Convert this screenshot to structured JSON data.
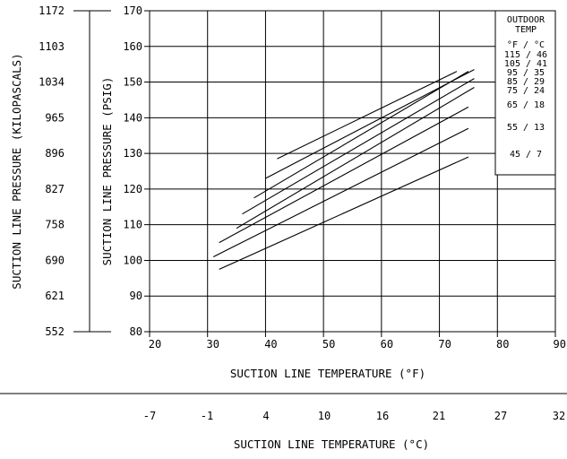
{
  "chart_data": {
    "type": "line",
    "x_axis": {
      "label": "SUCTION LINE TEMPERATURE (°F)",
      "range": [
        20,
        90
      ],
      "ticks": [
        20,
        30,
        40,
        50,
        60,
        70,
        80,
        90
      ]
    },
    "y_axis": {
      "label": "SUCTION LINE PRESSURE (PSIG)",
      "range": [
        80,
        170
      ],
      "ticks": [
        80,
        90,
        100,
        110,
        120,
        130,
        140,
        150,
        160,
        170
      ]
    },
    "secondary_y_axis": {
      "label": "SUCTION LINE PRESSURE (KILOPASCALS)",
      "ticks": [
        "552",
        "621",
        "690",
        "758",
        "827",
        "896",
        "965",
        "1034",
        "1103",
        "1172"
      ]
    },
    "secondary_x_axis": {
      "label": "SUCTION LINE TEMPERATURE (°C)",
      "ticks": [
        "-7",
        "-1",
        "4",
        "10",
        "16",
        "21",
        "27",
        "32"
      ]
    },
    "legend": {
      "title_line1": "OUTDOOR",
      "title_line2": "TEMP",
      "units": "°F / °C",
      "entries": [
        "115 / 46",
        "105 / 41",
        "95 / 35",
        "85 / 29",
        "75 / 24",
        "65 / 18",
        "55 / 13",
        "45 / 7"
      ],
      "placement": "top-right"
    },
    "grid": true,
    "series": [
      {
        "x": [
          42,
          73
        ],
        "y": [
          128.5,
          153
        ]
      },
      {
        "x": [
          38,
          75
        ],
        "y": [
          117.5,
          153
        ]
      },
      {
        "x": [
          40,
          76
        ],
        "y": [
          123,
          153.5
        ]
      },
      {
        "x": [
          36,
          76
        ],
        "y": [
          113,
          151
        ]
      },
      {
        "x": [
          35,
          76
        ],
        "y": [
          109,
          148.5
        ]
      },
      {
        "x": [
          32,
          75
        ],
        "y": [
          105,
          143
        ]
      },
      {
        "x": [
          31,
          75
        ],
        "y": [
          101,
          137
        ]
      },
      {
        "x": [
          32,
          75
        ],
        "y": [
          97.5,
          129
        ]
      }
    ]
  }
}
